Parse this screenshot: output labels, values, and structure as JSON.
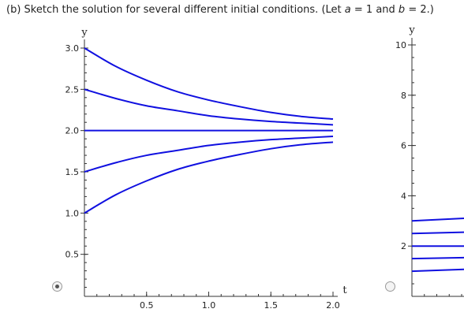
{
  "question": {
    "part": "(b)",
    "text_before": "Sketch the solution for several different initial conditions. (Let",
    "var_a": "a",
    "eq_a": "= 1  and",
    "var_b": "b",
    "eq_b": "= 2.)"
  },
  "options": [
    {
      "id": "option-1",
      "selected": true
    },
    {
      "id": "option-2",
      "selected": false
    }
  ],
  "chart_data": [
    {
      "type": "line",
      "xlabel": "t",
      "ylabel": "y",
      "xlim": [
        0,
        2.0
      ],
      "ylim": [
        0,
        3.0
      ],
      "x_ticks": [
        "0.5",
        "1.0",
        "1.5",
        "2.0"
      ],
      "y_ticks": [
        "0.5",
        "1.0",
        "1.5",
        "2.0",
        "2.5",
        "3.0"
      ],
      "x_tick_values": [
        0.5,
        1.0,
        1.5,
        2.0
      ],
      "y_tick_values": [
        0.5,
        1.0,
        1.5,
        2.0,
        2.5,
        3.0
      ],
      "series": [
        {
          "initial_y": 3.0,
          "x": [
            0,
            0.25,
            0.5,
            0.75,
            1.0,
            1.25,
            1.5,
            1.75,
            2.0
          ],
          "y": [
            3.0,
            2.78,
            2.61,
            2.47,
            2.37,
            2.29,
            2.22,
            2.17,
            2.14
          ]
        },
        {
          "initial_y": 2.5,
          "x": [
            0,
            0.25,
            0.5,
            0.75,
            1.0,
            1.25,
            1.5,
            1.75,
            2.0
          ],
          "y": [
            2.5,
            2.39,
            2.3,
            2.24,
            2.18,
            2.14,
            2.11,
            2.09,
            2.07
          ]
        },
        {
          "initial_y": 2.0,
          "x": [
            0,
            2.0
          ],
          "y": [
            2.0,
            2.0
          ]
        },
        {
          "initial_y": 1.5,
          "x": [
            0,
            0.25,
            0.5,
            0.75,
            1.0,
            1.25,
            1.5,
            1.75,
            2.0
          ],
          "y": [
            1.5,
            1.61,
            1.7,
            1.76,
            1.82,
            1.86,
            1.89,
            1.91,
            1.93
          ]
        },
        {
          "initial_y": 1.0,
          "x": [
            0,
            0.25,
            0.5,
            0.75,
            1.0,
            1.25,
            1.5,
            1.75,
            2.0
          ],
          "y": [
            1.0,
            1.22,
            1.39,
            1.53,
            1.63,
            1.71,
            1.78,
            1.83,
            1.86
          ]
        }
      ],
      "line_color": "#1010e0"
    },
    {
      "type": "line",
      "xlabel": "",
      "ylabel": "y",
      "xlim": [
        0,
        2.0
      ],
      "ylim": [
        0,
        10
      ],
      "y_ticks": [
        "2",
        "4",
        "6",
        "8",
        "10"
      ],
      "y_tick_values": [
        2,
        4,
        6,
        8,
        10
      ],
      "partially_visible": true,
      "series": [
        {
          "x": [
            0,
            2.0
          ],
          "y": [
            3.0,
            3.5
          ]
        },
        {
          "x": [
            0,
            2.0
          ],
          "y": [
            2.5,
            2.75
          ]
        },
        {
          "x": [
            0,
            2.0
          ],
          "y": [
            2.0,
            2.0
          ]
        },
        {
          "x": [
            0,
            2.0
          ],
          "y": [
            1.5,
            1.7
          ]
        },
        {
          "x": [
            0,
            2.0
          ],
          "y": [
            1.0,
            1.35
          ]
        }
      ],
      "line_color": "#1010e0"
    }
  ]
}
